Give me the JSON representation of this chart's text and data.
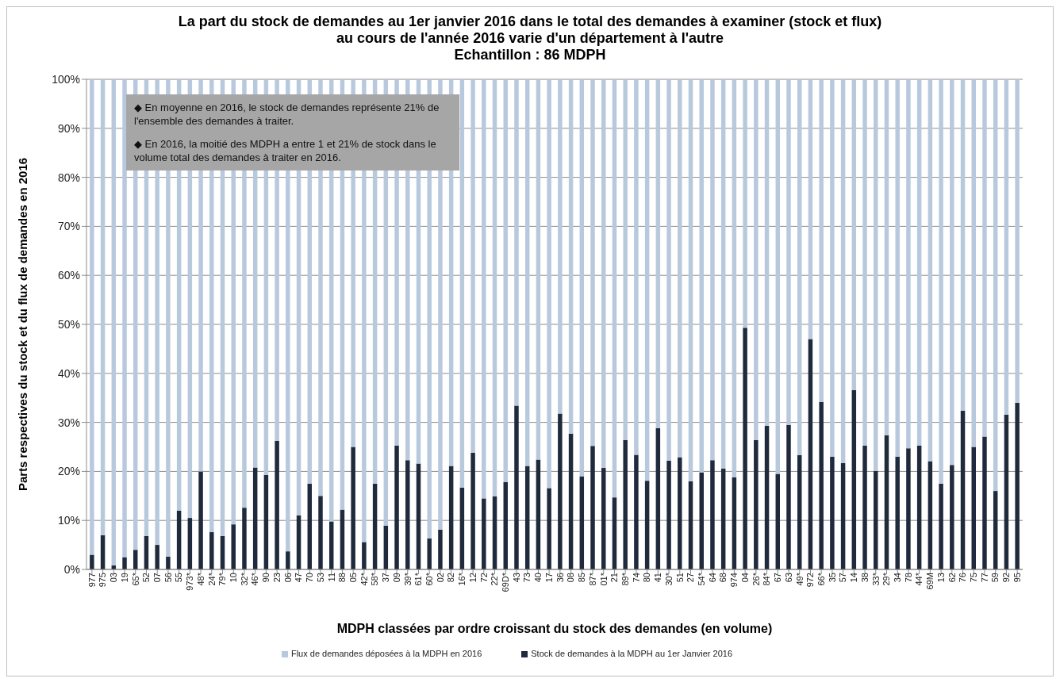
{
  "chart_data": {
    "type": "bar",
    "title": "La part du stock de demandes au 1er janvier 2016 dans le total des demandes à examiner (stock et flux) au cours de l'année 2016 varie d'un département à l'autre",
    "subtitle": "Echantillon : 86 MDPH",
    "xlabel": "MDPH classées par ordre croissant du stock des demandes (en volume)",
    "ylabel": "Parts respectives du stock et du flux de demandes en 2016",
    "annotations": [
      "◆ En moyenne en 2016, le stock de demandes représente 21% de l'ensemble des demandes à traiter.",
      "◆ En 2016, la moitié des MDPH a entre 1 et 21% de stock dans le volume total des demandes à traiter en 2016."
    ],
    "categories": [
      "977",
      "975",
      "03",
      "19",
      "65*",
      "52",
      "07",
      "56",
      "55",
      "973*",
      "48*",
      "24*",
      "79*",
      "10",
      "32*",
      "46*",
      "90",
      "23",
      "06",
      "47",
      "70",
      "53",
      "11",
      "88",
      "05",
      "42*",
      "58*",
      "37",
      "09",
      "39*",
      "61*",
      "60*",
      "02",
      "82",
      "16*",
      "12",
      "72",
      "22*",
      "69D*",
      "43",
      "73",
      "40",
      "17",
      "36",
      "08",
      "85",
      "87*",
      "01*",
      "21",
      "89*",
      "74",
      "80",
      "41",
      "30*",
      "51",
      "27",
      "54*",
      "64",
      "68",
      "974",
      "04",
      "26*",
      "84*",
      "67",
      "63",
      "49*",
      "972",
      "66*",
      "35",
      "57",
      "14",
      "38",
      "33*",
      "29*",
      "34",
      "78",
      "44*",
      "69M",
      "13",
      "62",
      "76",
      "75",
      "77",
      "59",
      "92",
      "95"
    ],
    "series": [
      {
        "name": "Stock de demandes à la MDPH au 1er Janvier 2016",
        "color": "#1f2a3c",
        "values": [
          3,
          7,
          0.8,
          2.5,
          4,
          6.8,
          5,
          2.6,
          12,
          10.5,
          20,
          7.6,
          6.8,
          9.2,
          12.6,
          20.8,
          19.3,
          26.2,
          3.7,
          11,
          17.5,
          15,
          9.8,
          12.2,
          25,
          5.6,
          17.5,
          8.9,
          25.3,
          22.3,
          21.6,
          6.3,
          8.1,
          21.1,
          16.7,
          23.8,
          14.5,
          14.9,
          17.8,
          33.4,
          21.1,
          22.4,
          16.6,
          31.8,
          27.7,
          19,
          25.2,
          20.7,
          14.7,
          26.4,
          23.4,
          18.1,
          28.8,
          22.2,
          22.9,
          18,
          19.8,
          22.3,
          20.6,
          18.8,
          49.3,
          26.4,
          29.3,
          19.5,
          29.5,
          23.3,
          47,
          34.2,
          23,
          21.7,
          36.6,
          25.3,
          20.1,
          27.4,
          23,
          24.7,
          25.3,
          22.1,
          17.5,
          21.3,
          32.4,
          25,
          27.1,
          16,
          31.6,
          34
        ]
      },
      {
        "name": "Flux de demandes déposées à la MDPH en 2016",
        "color": "#b9c9dd",
        "values": [
          97,
          93,
          99.2,
          97.5,
          96,
          93.2,
          95,
          97.4,
          88,
          89.5,
          80,
          92.4,
          93.2,
          90.8,
          87.4,
          79.2,
          80.7,
          73.8,
          96.3,
          89,
          82.5,
          85,
          90.2,
          87.8,
          75,
          94.4,
          82.5,
          91.1,
          74.7,
          77.7,
          78.4,
          93.7,
          91.9,
          78.9,
          83.3,
          76.2,
          85.5,
          85.1,
          82.2,
          66.6,
          78.9,
          77.6,
          83.4,
          68.2,
          72.3,
          81,
          74.8,
          79.3,
          85.3,
          73.6,
          76.6,
          81.9,
          71.2,
          77.8,
          77.1,
          82,
          80.2,
          77.7,
          79.4,
          81.2,
          50.7,
          73.6,
          70.7,
          80.5,
          70.5,
          76.7,
          53,
          65.8,
          77,
          78.3,
          63.4,
          74.7,
          79.9,
          72.6,
          77,
          75.3,
          74.7,
          77.9,
          82.5,
          78.7,
          67.6,
          75,
          72.9,
          84,
          68.4,
          66
        ]
      }
    ],
    "stacked": true,
    "ylim": [
      0,
      100
    ],
    "yticks": [
      {
        "value": 0,
        "label": "0%"
      },
      {
        "value": 10,
        "label": "10%"
      },
      {
        "value": 20,
        "label": "20%"
      },
      {
        "value": 30,
        "label": "30%"
      },
      {
        "value": 40,
        "label": "40%"
      },
      {
        "value": 50,
        "label": "50%"
      },
      {
        "value": 60,
        "label": "60%"
      },
      {
        "value": 70,
        "label": "70%"
      },
      {
        "value": 80,
        "label": "80%"
      },
      {
        "value": 90,
        "label": "90%"
      },
      {
        "value": 100,
        "label": "100%"
      }
    ],
    "grid": "y",
    "legend": "bottom"
  }
}
